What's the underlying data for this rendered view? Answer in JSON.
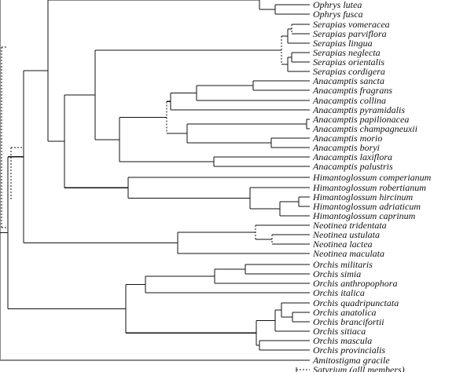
{
  "taxa": [
    "Ophrys lutea",
    "Ophrys fusca",
    "Serapias vomeracea",
    "Serapias parviflora",
    "Serapias lingua",
    "Serapias neglecta",
    "Serapias orientalis",
    "Serapias cordigera",
    "Anacamptis sancta",
    "Anacamptis fragrans",
    "Anacamptis collina",
    "Anacamptis pyramidalis",
    "Anacamptis papilionacea",
    "Anacamptis champagneuxii",
    "Anacamptis morio",
    "Anacamptis boryi",
    "Anacamptis laxiflora",
    "Anacamptis palustris",
    "Himantoglossum comperianum",
    "Himantoglossum robertianum",
    "Himantoglossum hircinum",
    "Himantoglossum adriaticum",
    "Himantoglossum caprinum",
    "Neotinea tridentata",
    "Neotinea ustulata",
    "Neotinea lactea",
    "Neotinea maculata",
    "Orchis militaris",
    "Orchis simia",
    "Orchis anthropophora",
    "Orchis italica",
    "Orchis quadripunctata",
    "Orchis anatolica",
    "Orchis brancifortii",
    "Orchis sitiaca",
    "Orchis mascula",
    "Orchis provincialis",
    "Amitostigma gracile",
    "Satyrium (alll members)"
  ],
  "colors": {
    "line": "#111111",
    "text": "#111111",
    "background": "#ffffff"
  }
}
